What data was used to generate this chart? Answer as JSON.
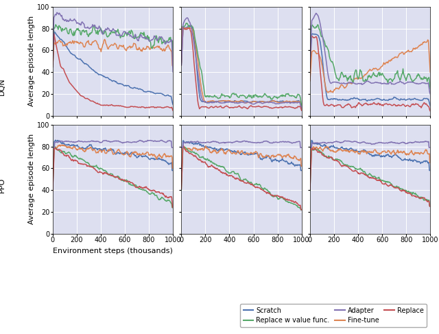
{
  "colors": {
    "scratch": "#4C72B0",
    "finetune": "#DD8452",
    "replace_val": "#55A868",
    "replace": "#C44E52",
    "adapter": "#8172B2"
  },
  "background_color": "#DDDFF0",
  "fig_background": "#FFFFFF",
  "ylabel": "Average episode length",
  "xlabel": "Environment steps (thousands)",
  "legend_entries": [
    "Scratch",
    "Fine-tune",
    "Replace \\w value func.",
    "Replace",
    "Adapter"
  ],
  "dqn_xlim": [
    0,
    50
  ],
  "ppo_xlim": [
    0,
    1000
  ],
  "ylim": [
    0,
    100
  ],
  "label_fontsize": 8,
  "tick_fontsize": 7,
  "row_label_fontsize": 8,
  "seed": 123
}
